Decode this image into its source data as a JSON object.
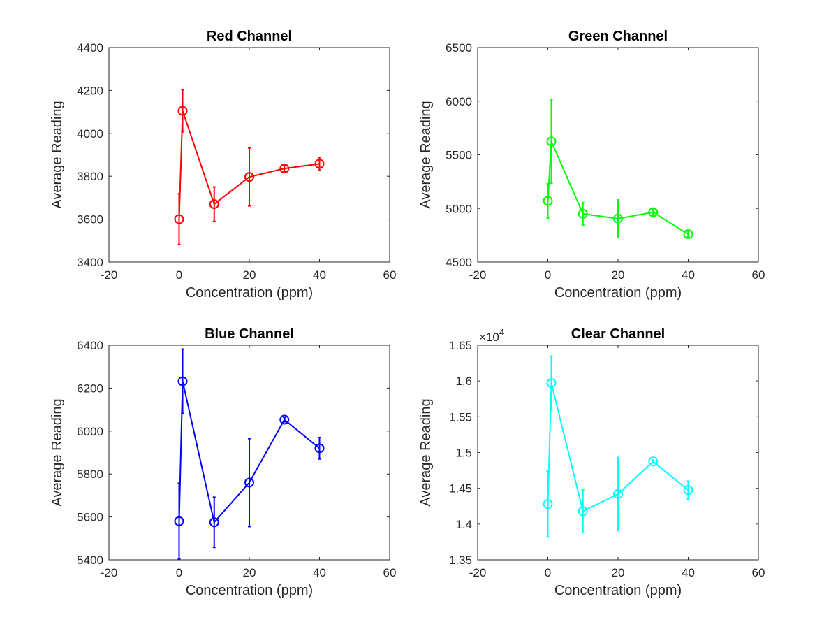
{
  "chart_data": [
    {
      "type": "line",
      "title": "Red Channel",
      "xlabel": "Concentration (ppm)",
      "ylabel": "Average Reading",
      "xlim": [
        -20,
        60
      ],
      "ylim": [
        3400,
        4400
      ],
      "xticks": [
        -20,
        0,
        20,
        40,
        60
      ],
      "yticks": [
        3400,
        3600,
        3800,
        4000,
        4200,
        4400
      ],
      "xtick_labels": [
        "-20",
        "0",
        "20",
        "40",
        "60"
      ],
      "ytick_labels": [
        "3400",
        "3600",
        "3800",
        "4000",
        "4200",
        "4400"
      ],
      "exponent_label": "",
      "color": "#ff0000",
      "series": [
        {
          "name": "Red",
          "x": [
            0,
            1,
            10,
            20,
            30,
            40
          ],
          "y": [
            3600,
            4105,
            3670,
            3797,
            3836,
            3858
          ],
          "err": [
            118,
            98,
            80,
            135,
            15,
            30
          ]
        }
      ]
    },
    {
      "type": "line",
      "title": "Green Channel",
      "xlabel": "Concentration (ppm)",
      "ylabel": "Average Reading",
      "xlim": [
        -20,
        60
      ],
      "ylim": [
        4500,
        6500
      ],
      "xticks": [
        -20,
        0,
        20,
        40,
        60
      ],
      "yticks": [
        4500,
        5000,
        5500,
        6000,
        6500
      ],
      "xtick_labels": [
        "-20",
        "0",
        "20",
        "40",
        "60"
      ],
      "ytick_labels": [
        "4500",
        "5000",
        "5500",
        "6000",
        "6500"
      ],
      "exponent_label": "",
      "color": "#00ff00",
      "series": [
        {
          "name": "Green",
          "x": [
            0,
            1,
            10,
            20,
            30,
            40
          ],
          "y": [
            5070,
            5625,
            4950,
            4905,
            4965,
            4760
          ],
          "err": [
            160,
            390,
            105,
            175,
            25,
            25
          ]
        }
      ]
    },
    {
      "type": "line",
      "title": "Blue Channel",
      "xlabel": "Concentration (ppm)",
      "ylabel": "Average Reading",
      "xlim": [
        -20,
        60
      ],
      "ylim": [
        5400,
        6400
      ],
      "xticks": [
        -20,
        0,
        20,
        40,
        60
      ],
      "yticks": [
        5400,
        5600,
        5800,
        6000,
        6200,
        6400
      ],
      "xtick_labels": [
        "-20",
        "0",
        "20",
        "40",
        "60"
      ],
      "ytick_labels": [
        "5400",
        "5600",
        "5800",
        "6000",
        "6200",
        "6400"
      ],
      "exponent_label": "",
      "color": "#0000ff",
      "series": [
        {
          "name": "Blue",
          "x": [
            0,
            1,
            10,
            20,
            30,
            40
          ],
          "y": [
            5580,
            6232,
            5575,
            5760,
            6053,
            5920
          ],
          "err": [
            177,
            150,
            117,
            205,
            10,
            50
          ]
        }
      ]
    },
    {
      "type": "line",
      "title": "Clear Channel",
      "xlabel": "Concentration (ppm)",
      "ylabel": "Average Reading",
      "xlim": [
        -20,
        60
      ],
      "ylim": [
        13500,
        16500
      ],
      "xticks": [
        -20,
        0,
        20,
        40,
        60
      ],
      "yticks": [
        13500,
        14000,
        14500,
        15000,
        15500,
        16000,
        16500
      ],
      "xtick_labels": [
        "-20",
        "0",
        "20",
        "40",
        "60"
      ],
      "ytick_labels": [
        "1.35",
        "1.4",
        "1.45",
        "1.5",
        "1.55",
        "1.6",
        "1.65"
      ],
      "exponent_label": "×10",
      "exponent_power": "4",
      "color": "#00ffff",
      "series": [
        {
          "name": "Clear",
          "x": [
            0,
            1,
            10,
            20,
            30,
            40
          ],
          "y": [
            14280,
            15970,
            14180,
            14420,
            14875,
            14475
          ],
          "err": [
            460,
            380,
            300,
            510,
            20,
            125
          ]
        }
      ]
    }
  ]
}
